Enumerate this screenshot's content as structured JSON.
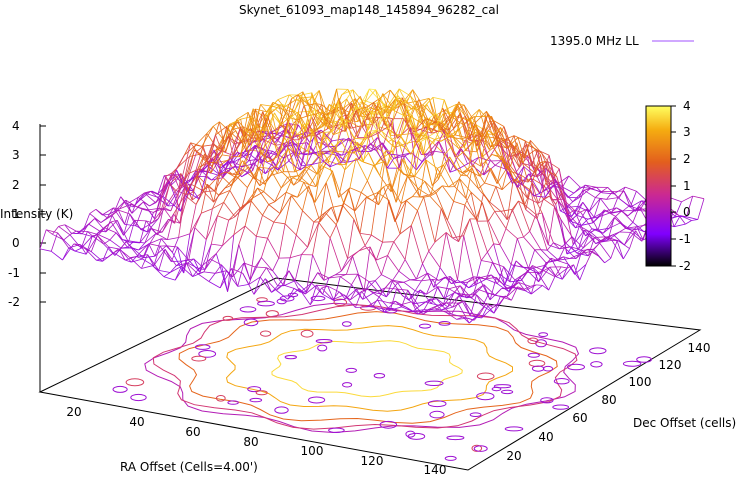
{
  "chart_data": {
    "type": "surface3d",
    "title": "Skynet_61093_map148_145894_96282_cal",
    "zlabel": "Intensity (K)",
    "xlabel": "RA Offset (Cells=4.00')",
    "ylabel": "Dec Offset (cells)",
    "zlim": [
      -2,
      4
    ],
    "xlim": [
      0,
      150
    ],
    "ylim": [
      0,
      150
    ],
    "z_ticks": [
      "4",
      "3",
      "2",
      "1",
      "0",
      "-1",
      "-2"
    ],
    "x_ticks": [
      "20",
      "40",
      "60",
      "80",
      "100",
      "120",
      "140"
    ],
    "y_ticks": [
      "20",
      "40",
      "60",
      "80",
      "100",
      "120",
      "140"
    ],
    "colorbar": {
      "ticks": [
        "4",
        "3",
        "2",
        "1",
        "0",
        "-1",
        "-2"
      ],
      "range": [
        -2,
        4
      ],
      "colors": [
        "#000000",
        "#8000ff",
        "#cc2a90",
        "#e35f1d",
        "#f5ac10",
        "#ffff60"
      ]
    },
    "legend": {
      "label": "1395.0 MHz LL",
      "placement": "top-right",
      "color": "#a050ff"
    },
    "series": [
      {
        "name": "1395.0 MHz LL",
        "peak_intensity": 4,
        "edge_intensity": 0,
        "min_intensity": -1.2,
        "shape": "broad dome centered near RA 70, Dec 80"
      }
    ],
    "grid": false,
    "contours": true
  }
}
